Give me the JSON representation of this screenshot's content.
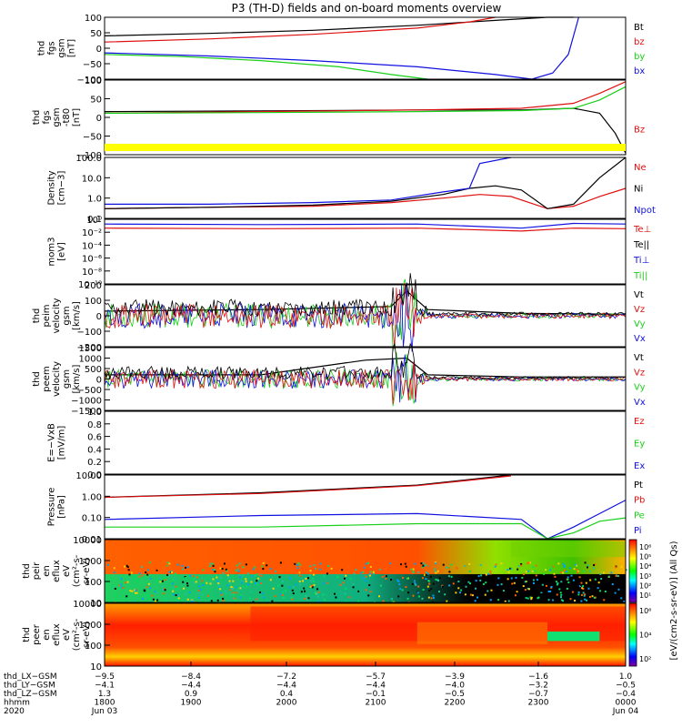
{
  "title": "P3 (TH-D) fields and on-board moments overview",
  "colors": {
    "black": "#000000",
    "red": "#e01010",
    "green": "#18d018",
    "blue": "#1010e0",
    "yellow": "#ffff00"
  },
  "chart_data": [
    {
      "id": "fgs-gsm",
      "type": "line",
      "ylabel": [
        "thd",
        "fgs",
        "gsm",
        "[nT]"
      ],
      "yticks": [
        "100",
        "50",
        "0",
        "−50",
        "−100"
      ],
      "ylim": [
        -100,
        100
      ],
      "legend": [
        {
          "label": "Bt",
          "color": "black"
        },
        {
          "label": "bz",
          "color": "red"
        },
        {
          "label": "by",
          "color": "green"
        },
        {
          "label": "bx",
          "color": "blue"
        }
      ],
      "series": [
        {
          "name": "Bt",
          "color": "black",
          "x": [
            0,
            0.2,
            0.4,
            0.6,
            0.75,
            0.85,
            0.9
          ],
          "y": [
            40,
            48,
            58,
            74,
            90,
            100,
            110
          ]
        },
        {
          "name": "bz",
          "color": "red",
          "x": [
            0,
            0.2,
            0.4,
            0.6,
            0.7,
            0.75
          ],
          "y": [
            20,
            30,
            45,
            65,
            85,
            100
          ]
        },
        {
          "name": "by",
          "color": "green",
          "x": [
            0,
            0.15,
            0.3,
            0.45,
            0.55,
            0.62
          ],
          "y": [
            -20,
            -27,
            -40,
            -60,
            -85,
            -100
          ]
        },
        {
          "name": "bx",
          "color": "blue",
          "x": [
            0,
            0.2,
            0.4,
            0.6,
            0.75,
            0.82,
            0.86,
            0.89,
            0.91
          ],
          "y": [
            -15,
            -25,
            -40,
            -60,
            -85,
            -100,
            -80,
            -20,
            100
          ]
        }
      ]
    },
    {
      "id": "fgs-gsm-dev",
      "type": "line",
      "ylabel": [
        "thd",
        "fgs",
        "gsm",
        "-t80",
        "[nT]"
      ],
      "yticks": [
        "100",
        "50",
        "0",
        "−50",
        "−100"
      ],
      "ylim": [
        -125,
        100
      ],
      "legend": [
        {
          "label": "Bz",
          "color": "red"
        }
      ],
      "series": [
        {
          "name": "",
          "color": "black",
          "x": [
            0,
            0.3,
            0.6,
            0.8,
            0.9,
            0.95,
            0.98,
            1.0
          ],
          "y": [
            5,
            7,
            10,
            10,
            15,
            0,
            -60,
            -120
          ]
        },
        {
          "name": "",
          "color": "red",
          "x": [
            0,
            0.3,
            0.6,
            0.8,
            0.9,
            0.95,
            1.0
          ],
          "y": [
            0,
            5,
            10,
            15,
            30,
            60,
            95
          ]
        },
        {
          "name": "",
          "color": "green",
          "x": [
            0,
            0.3,
            0.6,
            0.8,
            0.9,
            0.95,
            1.0
          ],
          "y": [
            0,
            2,
            5,
            8,
            15,
            40,
            80
          ]
        }
      ]
    },
    {
      "id": "density",
      "type": "line",
      "ylabel": [
        "Density",
        "[cm−3]"
      ],
      "yticks": [
        "100.0",
        "10.0",
        "1.0",
        "0.1"
      ],
      "ylim": [
        0.1,
        100
      ],
      "yscale": "log",
      "legend": [
        {
          "label": "Ne",
          "color": "red"
        },
        {
          "label": "Ni",
          "color": "black"
        },
        {
          "label": "Npot",
          "color": "blue"
        }
      ],
      "series": [
        {
          "name": "Ne",
          "color": "red",
          "x": [
            0,
            0.2,
            0.4,
            0.55,
            0.65,
            0.72,
            0.78,
            0.85,
            0.9,
            0.95,
            1.0
          ],
          "y": [
            0.3,
            0.35,
            0.4,
            0.6,
            1.0,
            1.5,
            1.2,
            0.3,
            0.4,
            1.2,
            3.0
          ]
        },
        {
          "name": "Ni",
          "color": "black",
          "x": [
            0,
            0.2,
            0.4,
            0.55,
            0.65,
            0.7,
            0.75,
            0.8,
            0.85,
            0.9,
            0.95,
            1.0
          ],
          "y": [
            0.3,
            0.35,
            0.45,
            0.7,
            1.5,
            3.0,
            4.0,
            2.5,
            0.3,
            0.5,
            10,
            100
          ]
        },
        {
          "name": "Npot",
          "color": "blue",
          "x": [
            0,
            0.2,
            0.4,
            0.55,
            0.65,
            0.7,
            0.72,
            0.78
          ],
          "y": [
            0.5,
            0.5,
            0.6,
            0.8,
            2.0,
            3.0,
            50,
            100
          ]
        }
      ]
    },
    {
      "id": "moments-temperature",
      "type": "line",
      "ylabel": [
        "mom3",
        "[eV]"
      ],
      "yticks": [
        "10⁰",
        "10⁻²",
        "10⁻⁴",
        "10⁻⁶",
        "10⁻⁸",
        "10⁻¹⁰"
      ],
      "ylim": [
        -10,
        1
      ],
      "legend": [
        {
          "label": "Te⊥",
          "color": "red"
        },
        {
          "label": "Te||",
          "color": "black"
        },
        {
          "label": "Ti⊥",
          "color": "blue"
        },
        {
          "label": "Ti||",
          "color": "green"
        }
      ],
      "series": [
        {
          "name": "Ti",
          "color": "blue",
          "x": [
            0,
            0.3,
            0.6,
            0.8,
            0.9,
            1.0
          ],
          "y": [
            0.2,
            0.1,
            0.2,
            -0.5,
            0.3,
            0.2
          ]
        },
        {
          "name": "Te",
          "color": "red",
          "x": [
            0,
            0.3,
            0.6,
            0.8,
            0.9,
            1.0
          ],
          "y": [
            -0.5,
            -0.6,
            -0.5,
            -1.0,
            -0.5,
            -0.6
          ]
        }
      ]
    },
    {
      "id": "peim-velocity",
      "type": "line",
      "ylabel": [
        "thd",
        "peim",
        "velocity",
        "gsm",
        "[km/s]"
      ],
      "yticks": [
        "200",
        "100",
        "0",
        "−100",
        "−200"
      ],
      "ylim": [
        -200,
        200
      ],
      "legend": [
        {
          "label": "Vt",
          "color": "black"
        },
        {
          "label": "Vz",
          "color": "red"
        },
        {
          "label": "Vy",
          "color": "green"
        },
        {
          "label": "Vx",
          "color": "blue"
        }
      ],
      "series": [
        {
          "name": "Vt",
          "color": "black",
          "x": [
            0,
            0.3,
            0.55,
            0.58,
            0.62,
            0.8,
            1.0
          ],
          "y": [
            30,
            40,
            60,
            160,
            40,
            15,
            10
          ]
        }
      ]
    },
    {
      "id": "peem-velocity",
      "type": "line",
      "ylabel": [
        "thd",
        "peem",
        "velocity",
        "gsm",
        "[km/s]"
      ],
      "yticks": [
        "1500",
        "1000",
        "500",
        "0",
        "−500",
        "−1000",
        "−1500"
      ],
      "ylim": [
        -1500,
        1500
      ],
      "legend": [
        {
          "label": "Vt",
          "color": "black"
        },
        {
          "label": "Vz",
          "color": "red"
        },
        {
          "label": "Vy",
          "color": "green"
        },
        {
          "label": "Vx",
          "color": "blue"
        }
      ],
      "series": [
        {
          "name": "Vt",
          "color": "black",
          "x": [
            0,
            0.3,
            0.5,
            0.58,
            0.62,
            0.8,
            1.0
          ],
          "y": [
            200,
            200,
            900,
            1000,
            200,
            100,
            100
          ]
        }
      ]
    },
    {
      "id": "efield",
      "type": "line",
      "ylabel": [
        "E=−VxB",
        "[mV/m]"
      ],
      "yticks": [
        "1.0",
        "0.8",
        "0.6",
        "0.4",
        "0.2",
        "0.0"
      ],
      "ylim": [
        0,
        1
      ],
      "legend": [
        {
          "label": "Ez",
          "color": "red"
        },
        {
          "label": "Ey",
          "color": "green"
        },
        {
          "label": "Ex",
          "color": "blue"
        }
      ],
      "series": []
    },
    {
      "id": "pressure",
      "type": "line",
      "ylabel": [
        "Pressure",
        "[nPa]"
      ],
      "yticks": [
        "10.00",
        "1.00",
        "0.10",
        "0.01"
      ],
      "ylim": [
        0.005,
        10
      ],
      "yscale": "log",
      "legend": [
        {
          "label": "Pt",
          "color": "black"
        },
        {
          "label": "Pb",
          "color": "red"
        },
        {
          "label": "Pe",
          "color": "green"
        },
        {
          "label": "Pi",
          "color": "blue"
        }
      ],
      "series": [
        {
          "name": "Pt",
          "color": "black",
          "x": [
            0,
            0.3,
            0.6,
            0.78
          ],
          "y": [
            0.7,
            1.2,
            3,
            10
          ]
        },
        {
          "name": "Pb",
          "color": "red",
          "x": [
            0,
            0.3,
            0.6,
            0.78
          ],
          "y": [
            0.7,
            1.1,
            2.8,
            9
          ]
        },
        {
          "name": "Pi",
          "color": "blue",
          "x": [
            0,
            0.3,
            0.6,
            0.8,
            0.85,
            0.9,
            0.95,
            1.0
          ],
          "y": [
            0.05,
            0.08,
            0.1,
            0.05,
            0.004,
            0.02,
            0.1,
            0.5
          ]
        },
        {
          "name": "Pe",
          "color": "green",
          "x": [
            0,
            0.3,
            0.6,
            0.8,
            0.85,
            0.9,
            0.95,
            1.0
          ],
          "y": [
            0.02,
            0.02,
            0.03,
            0.03,
            0.005,
            0.01,
            0.04,
            0.06
          ]
        }
      ]
    },
    {
      "id": "peir-spectrogram",
      "type": "heatmap",
      "ylabel": [
        "thd",
        "peir",
        "en",
        "eflux",
        "eV",
        "(cm²-s-",
        "sr-eV)"
      ],
      "yticks": [
        "10000",
        "1000",
        "100",
        "10"
      ],
      "ylim": [
        5,
        20000
      ],
      "yscale": "log"
    },
    {
      "id": "peer-spectrogram",
      "type": "heatmap",
      "ylabel": [
        "thd",
        "peer",
        "en",
        "eflux",
        "eV",
        "(cm²-s-",
        "sr-eV)"
      ],
      "yticks": [
        "10000",
        "1000",
        "100",
        "10"
      ],
      "ylim": [
        5,
        20000
      ],
      "yscale": "log"
    }
  ],
  "colorbars": [
    {
      "id": "cb-peir",
      "ticks": [
        "10⁶",
        "10⁵",
        "10⁴",
        "10³",
        "10²",
        "10¹"
      ]
    },
    {
      "id": "cb-peer",
      "ticks": [
        "10⁶",
        "10⁴",
        "10²"
      ]
    }
  ],
  "colorbar_label": "[eV/(cm2-s-sr-eV)] (All Qs)",
  "xaxis": {
    "rows": [
      {
        "label": "thd_LX−GSM",
        "values": [
          "−9.5",
          "−8.4",
          "−7.2",
          "−5.7",
          "−3.9",
          "−1.6",
          "1.0"
        ]
      },
      {
        "label": "thd_LY−GSM",
        "values": [
          "−4.1",
          "−4.4",
          "−4.4",
          "−4.4",
          "−4.0",
          "−3.2",
          "−0.5"
        ]
      },
      {
        "label": "thd_LZ−GSM",
        "values": [
          "1.3",
          "0.9",
          "0.4",
          "−0.1",
          "−0.5",
          "−0.7",
          "−0.4"
        ]
      },
      {
        "label": "hhmm",
        "values": [
          "1800",
          "1900",
          "2000",
          "2100",
          "2200",
          "2300",
          "0000"
        ]
      },
      {
        "label": "2020",
        "values": [
          "Jun 03",
          "",
          "",
          "",
          "",
          "",
          "Jun 04"
        ]
      }
    ]
  }
}
